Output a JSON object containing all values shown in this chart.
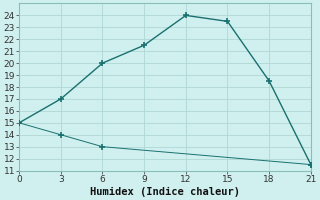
{
  "xlabel": "Humidex (Indice chaleur)",
  "line1_x": [
    0,
    3,
    6,
    9,
    12,
    15,
    18,
    21
  ],
  "line1_y": [
    15,
    17,
    20,
    21.5,
    24,
    23.5,
    18.5,
    11.5
  ],
  "line2_x": [
    0,
    3,
    6,
    21
  ],
  "line2_y": [
    15,
    14,
    13,
    11.5
  ],
  "line_color": "#1a7070",
  "marker": "+",
  "marker_size": 5,
  "marker_lw": 1.2,
  "bg_color": "#cff0ee",
  "grid_color": "#b0d8d4",
  "spine_color": "#8abcb8",
  "xlim": [
    0,
    21
  ],
  "ylim": [
    11,
    25
  ],
  "xticks": [
    0,
    3,
    6,
    9,
    12,
    15,
    18,
    21
  ],
  "yticks": [
    11,
    12,
    13,
    14,
    15,
    16,
    17,
    18,
    19,
    20,
    21,
    22,
    23,
    24
  ],
  "tick_fontsize": 6.5,
  "xlabel_fontsize": 7.5
}
